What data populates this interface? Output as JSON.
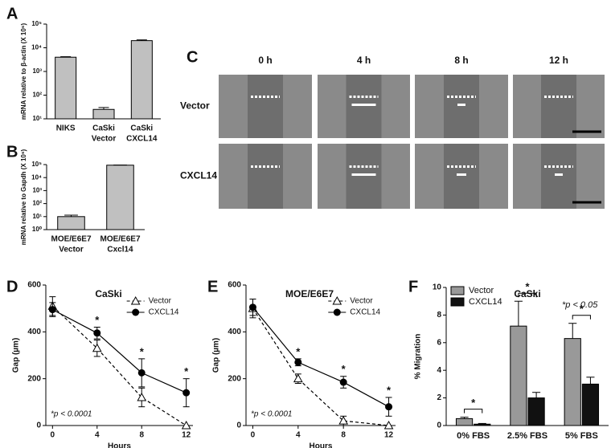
{
  "chart_data": [
    {
      "type": "bar",
      "log": true,
      "panel_label": "A",
      "ylabel": "mRNA relative to β-actin (X 10⁶)",
      "categories": [
        [
          "NIKS"
        ],
        [
          "CaSki",
          "Vector"
        ],
        [
          "CaSki",
          "CXCL14"
        ]
      ],
      "values": [
        4000,
        25,
        20000
      ],
      "errors": [
        200,
        5,
        1500
      ],
      "color": "#c0c0c0",
      "ylim": [
        10,
        100000
      ],
      "yticks": [
        {
          "value": 10,
          "label": "10¹"
        },
        {
          "value": 100,
          "label": "10²"
        },
        {
          "value": 1000,
          "label": "10³"
        },
        {
          "value": 10000,
          "label": "10⁴"
        },
        {
          "value": 100000,
          "label": "10⁵"
        }
      ]
    },
    {
      "type": "bar",
      "log": true,
      "panel_label": "B",
      "ylabel": "mRNA relative to Gapdh (X 10⁶)",
      "categories": [
        [
          "MOE/E6E7",
          "Vector"
        ],
        [
          "MOE/E6E7",
          "Cxcl14"
        ]
      ],
      "values": [
        10,
        90000
      ],
      "errors": [
        3,
        3000
      ],
      "color": "#c0c0c0",
      "ylim": [
        1,
        100000
      ],
      "yticks": [
        {
          "value": 1,
          "label": "10⁰"
        },
        {
          "value": 10,
          "label": "10¹"
        },
        {
          "value": 100,
          "label": "10²"
        },
        {
          "value": 1000,
          "label": "10³"
        },
        {
          "value": 10000,
          "label": "10⁴"
        },
        {
          "value": 100000,
          "label": "10⁵"
        }
      ]
    },
    {
      "type": "line",
      "panel_label": "D",
      "title": "CaSki",
      "xlabel": "Hours",
      "ylabel": "Gap (µm)",
      "x": [
        0,
        4,
        8,
        12
      ],
      "xlim": [
        -0.6,
        12.6
      ],
      "xticks": [
        0,
        4,
        8,
        12
      ],
      "ylim": [
        0,
        600
      ],
      "yticks": [
        0,
        200,
        400,
        600
      ],
      "series": [
        {
          "name": "Vector",
          "color": "#000000",
          "line_style": "dashed",
          "marker": "triangle-open",
          "values": [
            510,
            330,
            120,
            0
          ],
          "errors": [
            40,
            35,
            40,
            0
          ]
        },
        {
          "name": "CXCL14",
          "color": "#000000",
          "line_style": "solid",
          "marker": "circle",
          "values": [
            495,
            395,
            225,
            140
          ],
          "errors": [
            30,
            25,
            60,
            60
          ]
        }
      ],
      "legend": "upper right",
      "annotation": "*p < 0.0001",
      "significance": {
        "label": "*",
        "x": [
          4,
          8,
          12
        ]
      }
    },
    {
      "type": "line",
      "panel_label": "E",
      "title": "MOE/E6E7",
      "xlabel": "Hours",
      "ylabel": "Gap (µm)",
      "x": [
        0,
        4,
        8,
        12
      ],
      "xlim": [
        -0.6,
        12.6
      ],
      "xticks": [
        0,
        4,
        8,
        12
      ],
      "ylim": [
        0,
        600
      ],
      "yticks": [
        0,
        200,
        400,
        600
      ],
      "series": [
        {
          "name": "Vector",
          "color": "#000000",
          "line_style": "dashed",
          "marker": "triangle-open",
          "values": [
            500,
            200,
            20,
            0
          ],
          "errors": [
            40,
            20,
            20,
            0
          ]
        },
        {
          "name": "CXCL14",
          "color": "#000000",
          "line_style": "solid",
          "marker": "circle",
          "values": [
            505,
            270,
            185,
            80
          ],
          "errors": [
            35,
            15,
            25,
            40
          ]
        }
      ],
      "legend": "upper right",
      "annotation": "*p < 0.0001",
      "significance": {
        "label": "*",
        "x": [
          4,
          8,
          12
        ]
      }
    },
    {
      "type": "grouped_bar",
      "panel_label": "F",
      "title": "CaSki",
      "ylabel": "% Migration",
      "categories": [
        "0% FBS",
        "2.5% FBS",
        "5% FBS"
      ],
      "series": [
        {
          "name": "Vector",
          "color": "#999999",
          "values": [
            0.5,
            7.2,
            6.3
          ],
          "errors": [
            0.1,
            1.8,
            1.1
          ]
        },
        {
          "name": "CXCL14",
          "color": "#111111",
          "values": [
            0.1,
            2.0,
            3.0
          ],
          "errors": [
            0.05,
            0.4,
            0.5
          ]
        }
      ],
      "ylim": [
        0,
        10
      ],
      "yticks": [
        0,
        2,
        4,
        6,
        8,
        10
      ],
      "legend": "upper left",
      "annotation": "*p < 0.05",
      "significance_label": "*"
    }
  ],
  "panel_c": {
    "label": "C",
    "columns": [
      "0 h",
      "4 h",
      "8 h",
      "12 h"
    ],
    "rows": [
      "Vector",
      "CXCL14"
    ]
  }
}
